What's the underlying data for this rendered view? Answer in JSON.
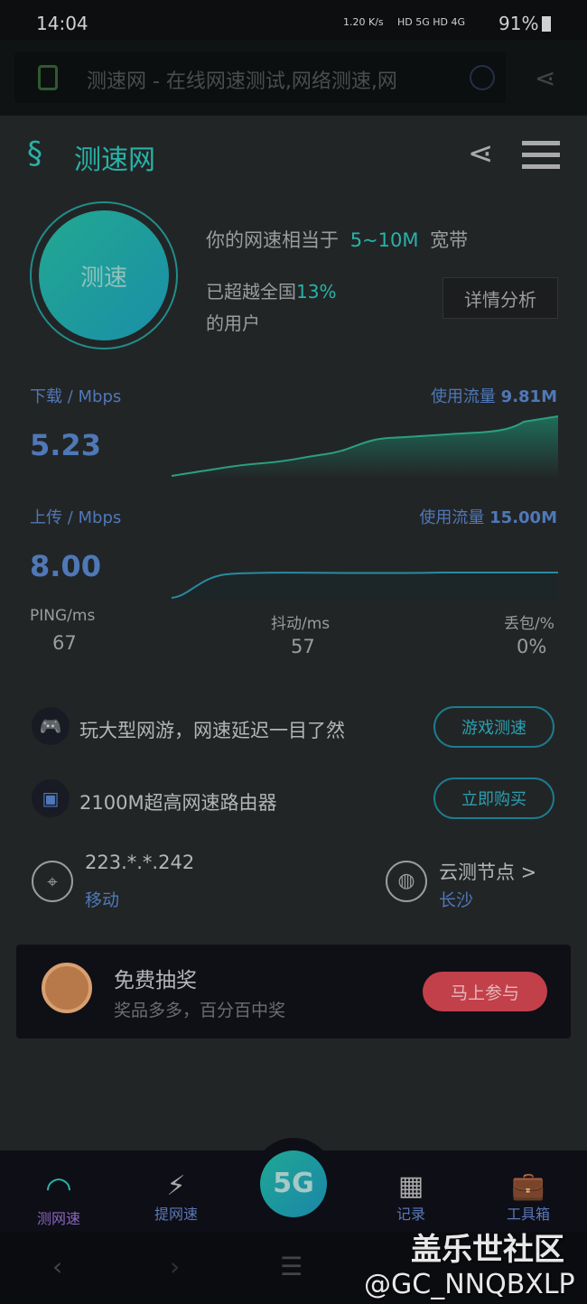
{
  "status": {
    "time": "14:04",
    "speed": "1.20 K/s",
    "net": "HD 5G HD 4G",
    "battery": "91%"
  },
  "browser": {
    "url_title": "测速网 - 在线网速测试,网络测速,网"
  },
  "header": {
    "logo": "测速网"
  },
  "gauge": {
    "label": "测速"
  },
  "summary": {
    "prefix": "你的网速相当于",
    "bandwidth": "5~10M",
    "suffix": "宽带",
    "exceed_prefix": "已超越全国",
    "exceed_pct": "13%",
    "exceed_suffix": "的用户",
    "detail_button": "详情分析"
  },
  "download": {
    "label": "下载 / Mbps",
    "value": "5.23",
    "usage_label": "使用流量",
    "usage": "9.81M"
  },
  "upload": {
    "label": "上传 / Mbps",
    "value": "8.00",
    "usage_label": "使用流量",
    "usage": "15.00M"
  },
  "stats": [
    {
      "label": "PING/ms",
      "value": "67"
    },
    {
      "label": "抖动/ms",
      "value": "57"
    },
    {
      "label": "丢包/%",
      "value": "0%"
    }
  ],
  "promos": [
    {
      "text": "玩大型网游，网速延迟一目了然",
      "button": "游戏测速"
    },
    {
      "text": "2100M超高网速路由器",
      "button": "立即购买"
    }
  ],
  "ip": {
    "address": "223.*.*.242",
    "isp": "移动"
  },
  "node": {
    "label": "云测节点 >",
    "city": "长沙"
  },
  "lottery": {
    "title": "免费抽奖",
    "subtitle": "奖品多多，百分百中奖",
    "button": "马上参与"
  },
  "bottom_nav": [
    {
      "label": "测网速"
    },
    {
      "label": "提网速"
    },
    {
      "label": "5G"
    },
    {
      "label": "记录"
    },
    {
      "label": "工具箱"
    }
  ],
  "watermark": {
    "line1": "盖乐世社区",
    "line2": "@GC_NNQBXLP"
  },
  "colors": {
    "accent": "#27b3a8",
    "blue": "#4f78b8",
    "lottery_button": "#c2404a"
  }
}
